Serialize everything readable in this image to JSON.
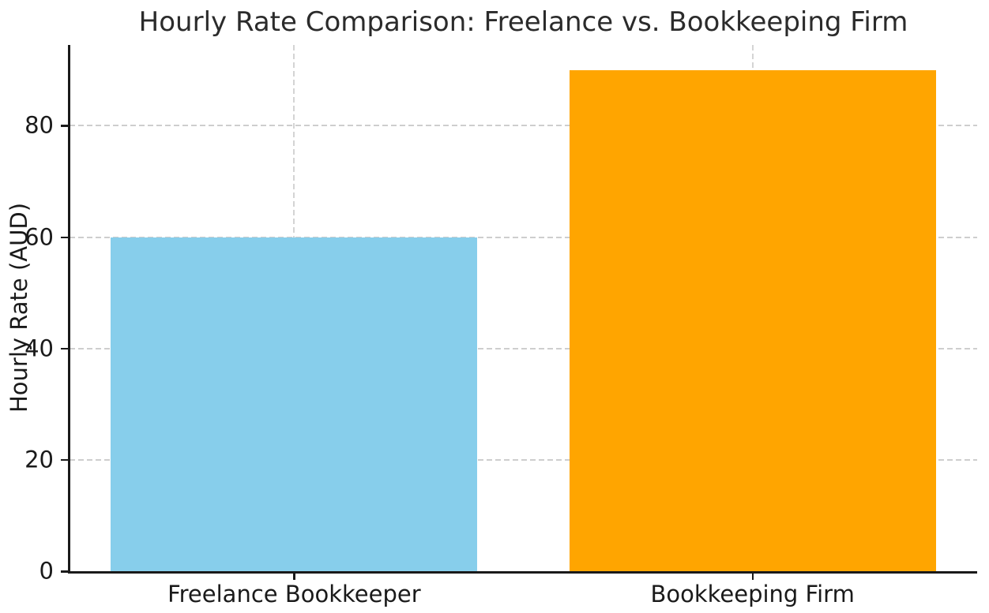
{
  "chart_data": {
    "type": "bar",
    "title": "Hourly Rate Comparison: Freelance vs. Bookkeeping Firm",
    "xlabel": "",
    "ylabel": "Hourly Rate (AUD)",
    "categories": [
      "Freelance Bookkeeper",
      "Bookkeeping Firm"
    ],
    "values": [
      60,
      90
    ],
    "bar_colors": [
      "#87CEEB",
      "#FFA500"
    ],
    "ylim": [
      0,
      94.5
    ],
    "yticks": [
      0,
      20,
      40,
      60,
      80
    ],
    "grid": "dashed, light gray, horizontal and vertical, behind bars",
    "grid_color": "#cecece",
    "legend": "none",
    "background_color": "#ffffff",
    "spine_color": "#1a1a1a"
  }
}
